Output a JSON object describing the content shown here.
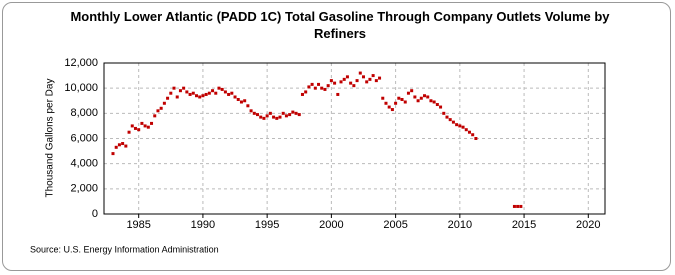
{
  "chart_data": {
    "type": "scatter",
    "title": "Monthly Lower Atlantic (PADD 1C) Total Gasoline Through Company Outlets Volume by Refiners",
    "y_label": "Thousand Gallons per Day",
    "source": "Source: U.S. Energy Information Administration",
    "color": "#c00000",
    "grid": true,
    "xlim": [
      1982.3,
      2021.3
    ],
    "xticks": [
      1985,
      1990,
      1995,
      2000,
      2005,
      2010,
      2015,
      2020
    ],
    "ylim": [
      0,
      12000
    ],
    "yticks": [
      0,
      {
        "value": 2000,
        "label": "2,000"
      },
      {
        "value": 4000,
        "label": "4,000"
      },
      {
        "value": 6000,
        "label": "6,000"
      },
      {
        "value": 8000,
        "label": "8,000"
      },
      {
        "value": 10000,
        "label": "10,000"
      },
      {
        "value": 12000,
        "label": "12,000"
      }
    ],
    "x": [
      1983.0,
      1983.25,
      1983.5,
      1983.75,
      1984.0,
      1984.25,
      1984.5,
      1984.75,
      1985.0,
      1985.25,
      1985.5,
      1985.75,
      1986.0,
      1986.25,
      1986.5,
      1986.75,
      1987.0,
      1987.25,
      1987.5,
      1987.75,
      1988.0,
      1988.25,
      1988.5,
      1988.75,
      1989.0,
      1989.25,
      1989.5,
      1989.75,
      1990.0,
      1990.25,
      1990.5,
      1990.75,
      1991.0,
      1991.25,
      1991.5,
      1991.75,
      1992.0,
      1992.25,
      1992.5,
      1992.75,
      1993.0,
      1993.25,
      1993.5,
      1993.75,
      1994.0,
      1994.25,
      1994.5,
      1994.75,
      1995.0,
      1995.25,
      1995.5,
      1995.75,
      1996.0,
      1996.25,
      1996.5,
      1996.75,
      1997.0,
      1997.25,
      1997.5,
      1997.75,
      1998.0,
      1998.25,
      1998.5,
      1998.75,
      1999.0,
      1999.25,
      1999.5,
      1999.75,
      2000.0,
      2000.25,
      2000.5,
      2000.75,
      2001.0,
      2001.25,
      2001.5,
      2001.75,
      2002.0,
      2002.25,
      2002.5,
      2002.75,
      2003.0,
      2003.25,
      2003.5,
      2003.75,
      2004.0,
      2004.25,
      2004.5,
      2004.75,
      2005.0,
      2005.25,
      2005.5,
      2005.75,
      2006.0,
      2006.25,
      2006.5,
      2006.75,
      2007.0,
      2007.25,
      2007.5,
      2007.75,
      2008.0,
      2008.25,
      2008.5,
      2008.75,
      2009.0,
      2009.25,
      2009.5,
      2009.75,
      2010.0,
      2010.25,
      2010.5,
      2010.75,
      2011.0,
      2011.25,
      2014.25,
      2014.5,
      2014.75
    ],
    "values": [
      4800,
      5300,
      5500,
      5600,
      5400,
      6500,
      7000,
      6800,
      6700,
      7200,
      7000,
      6900,
      7200,
      7800,
      8200,
      8400,
      8800,
      9200,
      9600,
      10000,
      9300,
      9800,
      10000,
      9700,
      9500,
      9600,
      9400,
      9300,
      9400,
      9500,
      9600,
      9800,
      9600,
      10000,
      9900,
      9700,
      9500,
      9600,
      9300,
      9100,
      8900,
      9000,
      8600,
      8200,
      8000,
      7900,
      7700,
      7600,
      7800,
      8000,
      7700,
      7600,
      7700,
      8000,
      7800,
      7900,
      8100,
      8000,
      7900,
      9500,
      9700,
      10100,
      10300,
      10000,
      10300,
      10000,
      9900,
      10200,
      10600,
      10400,
      9500,
      10500,
      10700,
      10900,
      10400,
      10200,
      10600,
      11200,
      10900,
      10500,
      10700,
      11000,
      10600,
      10800,
      9200,
      8800,
      8500,
      8300,
      8800,
      9200,
      9100,
      8900,
      9600,
      9800,
      9300,
      9000,
      9200,
      9400,
      9300,
      9000,
      8900,
      8700,
      8500,
      8000,
      7700,
      7500,
      7300,
      7100,
      7000,
      6900,
      6700,
      6500,
      6300,
      6000,
      600,
      600,
      600
    ]
  }
}
